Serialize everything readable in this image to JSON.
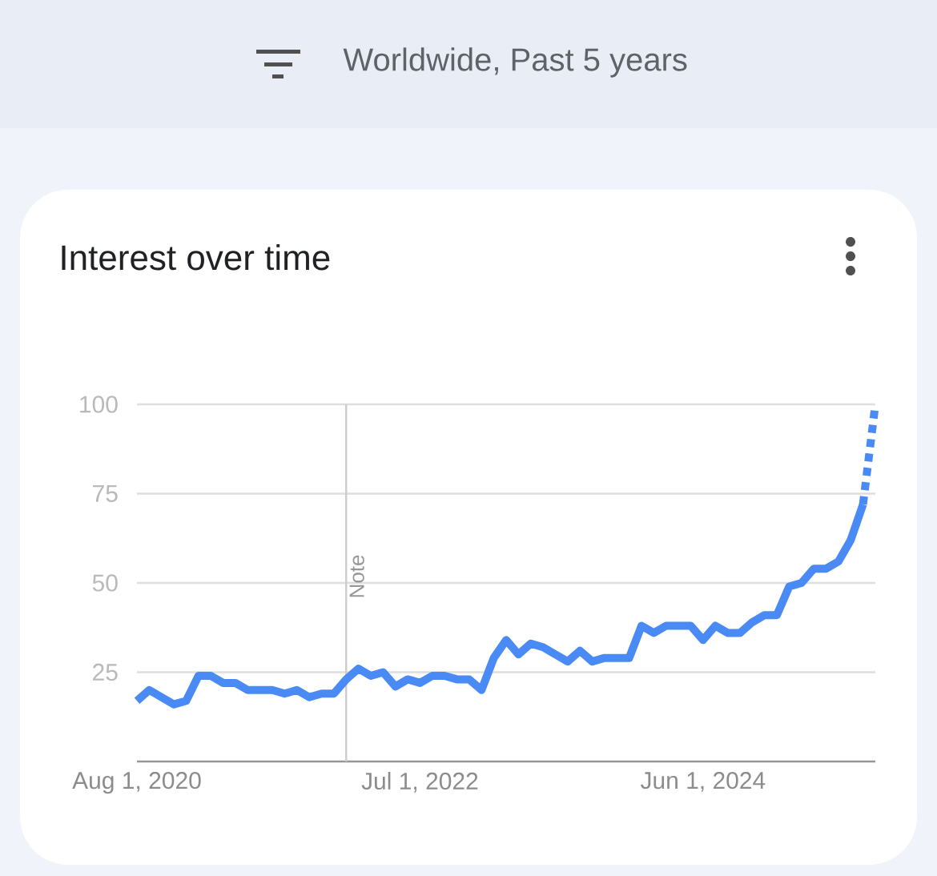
{
  "chart_data": {
    "type": "line",
    "title": "Interest over time",
    "subtitle": "Worldwide, Past 5 years",
    "x": [
      "2020-08",
      "2020-09",
      "2020-10",
      "2020-11",
      "2020-12",
      "2021-01",
      "2021-02",
      "2021-03",
      "2021-04",
      "2021-05",
      "2021-06",
      "2021-07",
      "2021-08",
      "2021-09",
      "2021-10",
      "2021-11",
      "2021-12",
      "2022-01",
      "2022-02",
      "2022-03",
      "2022-04",
      "2022-05",
      "2022-06",
      "2022-07",
      "2022-08",
      "2022-09",
      "2022-10",
      "2022-11",
      "2022-12",
      "2023-01",
      "2023-02",
      "2023-03",
      "2023-04",
      "2023-05",
      "2023-06",
      "2023-07",
      "2023-08",
      "2023-09",
      "2023-10",
      "2023-11",
      "2023-12",
      "2024-01",
      "2024-02",
      "2024-03",
      "2024-04",
      "2024-05",
      "2024-06",
      "2024-07",
      "2024-08",
      "2024-09",
      "2024-10",
      "2024-11",
      "2024-12",
      "2025-01",
      "2025-02",
      "2025-03",
      "2025-04",
      "2025-05",
      "2025-06",
      "2025-07"
    ],
    "series": [
      {
        "color": "#4a8af4",
        "line_style": "solid",
        "values": [
          17,
          20,
          18,
          16,
          17,
          24,
          24,
          22,
          22,
          20,
          20,
          20,
          19,
          20,
          18,
          19,
          19,
          23,
          26,
          24,
          25,
          21,
          23,
          22,
          24,
          24,
          23,
          23,
          20,
          29,
          34,
          30,
          33,
          32,
          30,
          28,
          31,
          28,
          29,
          29,
          29,
          38,
          36,
          38,
          38,
          38,
          34,
          38,
          36,
          36,
          39,
          41,
          41,
          49,
          50,
          54,
          54,
          56,
          62,
          72
        ]
      },
      {
        "color": "#4a8af4",
        "line_style": "dotted",
        "x": [
          "2025-07",
          "2025-08"
        ],
        "values": [
          72,
          100
        ]
      }
    ],
    "xlim": [
      "2020-08",
      "2025-08"
    ],
    "xticks": [
      {
        "value": "2020-08-01",
        "label": "Aug 1, 2020"
      },
      {
        "value": "2022-07-01",
        "label": "Jul 1, 2022"
      },
      {
        "value": "2024-06-01",
        "label": "Jun 1, 2024"
      }
    ],
    "ylim": [
      0,
      100
    ],
    "yticks": [
      25,
      50,
      75,
      100
    ],
    "grid": "y",
    "marker": "none",
    "ref_lines": [
      {
        "axis": "x",
        "value": "2022-01",
        "label": "Note",
        "color": "#cccccc"
      }
    ]
  }
}
